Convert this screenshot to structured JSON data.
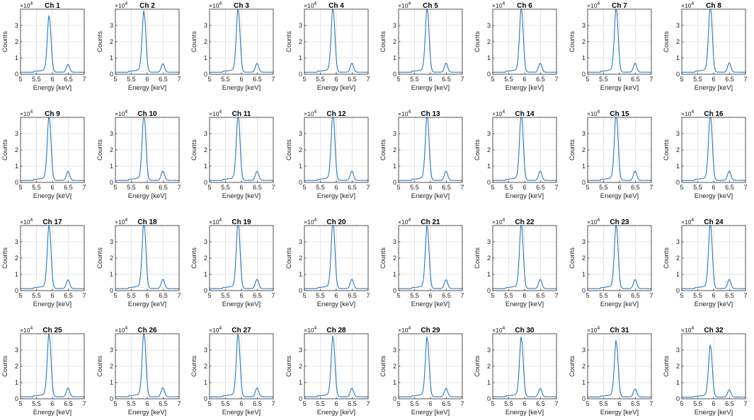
{
  "chart_data": {
    "type": "line",
    "layout": {
      "rows": 4,
      "cols": 8
    },
    "line_color": "#2878bd",
    "grid": true,
    "xlabel": "Energy [keV]",
    "ylabel": "Counts",
    "xlim": [
      5,
      7
    ],
    "ylim": [
      0,
      40000
    ],
    "x_ticks": [
      "5",
      "5.5",
      "6",
      "6.5",
      "7"
    ],
    "y_ticks": [
      "0",
      "1",
      "2",
      "3"
    ],
    "y_tick_values": [
      0,
      10000,
      20000,
      30000
    ],
    "y_exponent_base": "×10",
    "y_exponent_power": "4",
    "peak_energies_keV": [
      5.9,
      6.49
    ],
    "panels": [
      {
        "title": "Ch 1",
        "peak_kalpha": 33500,
        "peak_kbeta": 4800,
        "baseline": 1200
      },
      {
        "title": "Ch 2",
        "peak_kalpha": 36500,
        "peak_kbeta": 5200,
        "baseline": 1200
      },
      {
        "title": "Ch 3",
        "peak_kalpha": 38000,
        "peak_kbeta": 5400,
        "baseline": 1200
      },
      {
        "title": "Ch 4",
        "peak_kalpha": 38500,
        "peak_kbeta": 5500,
        "baseline": 1200
      },
      {
        "title": "Ch 5",
        "peak_kalpha": 38500,
        "peak_kbeta": 5500,
        "baseline": 1200
      },
      {
        "title": "Ch 6",
        "peak_kalpha": 38500,
        "peak_kbeta": 5500,
        "baseline": 1200
      },
      {
        "title": "Ch 7",
        "peak_kalpha": 38500,
        "peak_kbeta": 5500,
        "baseline": 1200
      },
      {
        "title": "Ch 8",
        "peak_kalpha": 40000,
        "peak_kbeta": 5700,
        "baseline": 1200
      },
      {
        "title": "Ch 9",
        "peak_kalpha": 38500,
        "peak_kbeta": 5500,
        "baseline": 1200
      },
      {
        "title": "Ch 10",
        "peak_kalpha": 40000,
        "peak_kbeta": 5700,
        "baseline": 1200
      },
      {
        "title": "Ch 11",
        "peak_kalpha": 39000,
        "peak_kbeta": 5600,
        "baseline": 1200
      },
      {
        "title": "Ch 12",
        "peak_kalpha": 40000,
        "peak_kbeta": 5700,
        "baseline": 1200
      },
      {
        "title": "Ch 13",
        "peak_kalpha": 39000,
        "peak_kbeta": 5600,
        "baseline": 1200
      },
      {
        "title": "Ch 14",
        "peak_kalpha": 40000,
        "peak_kbeta": 5700,
        "baseline": 1200
      },
      {
        "title": "Ch 15",
        "peak_kalpha": 40000,
        "peak_kbeta": 5700,
        "baseline": 1200
      },
      {
        "title": "Ch 16",
        "peak_kalpha": 40000,
        "peak_kbeta": 5700,
        "baseline": 1200
      },
      {
        "title": "Ch 17",
        "peak_kalpha": 38000,
        "peak_kbeta": 5400,
        "baseline": 1200
      },
      {
        "title": "Ch 18",
        "peak_kalpha": 40000,
        "peak_kbeta": 5700,
        "baseline": 1200
      },
      {
        "title": "Ch 19",
        "peak_kalpha": 40000,
        "peak_kbeta": 5700,
        "baseline": 1200
      },
      {
        "title": "Ch 20",
        "peak_kalpha": 40000,
        "peak_kbeta": 5700,
        "baseline": 1200
      },
      {
        "title": "Ch 21",
        "peak_kalpha": 37500,
        "peak_kbeta": 5400,
        "baseline": 1200
      },
      {
        "title": "Ch 22",
        "peak_kalpha": 39000,
        "peak_kbeta": 5600,
        "baseline": 1200
      },
      {
        "title": "Ch 23",
        "peak_kalpha": 38500,
        "peak_kbeta": 5500,
        "baseline": 1200
      },
      {
        "title": "Ch 24",
        "peak_kalpha": 39000,
        "peak_kbeta": 5600,
        "baseline": 1200
      },
      {
        "title": "Ch 25",
        "peak_kalpha": 38000,
        "peak_kbeta": 5400,
        "baseline": 1200
      },
      {
        "title": "Ch 26",
        "peak_kalpha": 38500,
        "peak_kbeta": 5500,
        "baseline": 1200
      },
      {
        "title": "Ch 27",
        "peak_kalpha": 37500,
        "peak_kbeta": 5400,
        "baseline": 1200
      },
      {
        "title": "Ch 28",
        "peak_kalpha": 36000,
        "peak_kbeta": 5200,
        "baseline": 1200
      },
      {
        "title": "Ch 29",
        "peak_kalpha": 35500,
        "peak_kbeta": 5100,
        "baseline": 1200
      },
      {
        "title": "Ch 30",
        "peak_kalpha": 35500,
        "peak_kbeta": 5000,
        "baseline": 1200
      },
      {
        "title": "Ch 31",
        "peak_kalpha": 33500,
        "peak_kbeta": 4800,
        "baseline": 1100
      },
      {
        "title": "Ch 32",
        "peak_kalpha": 31000,
        "peak_kbeta": 4400,
        "baseline": 1000
      }
    ]
  }
}
